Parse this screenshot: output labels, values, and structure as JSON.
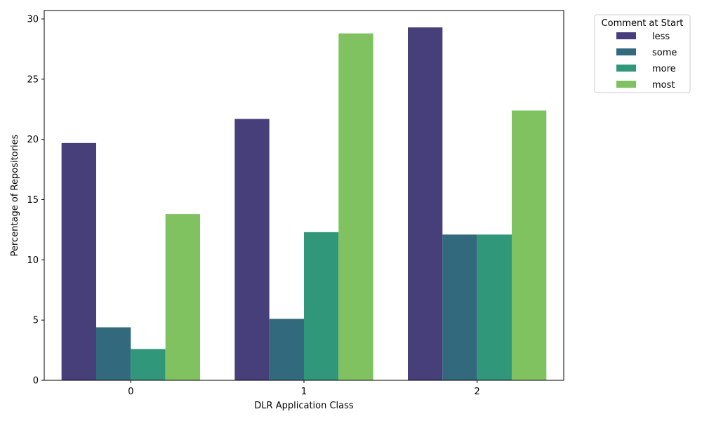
{
  "chart_data": {
    "type": "bar",
    "xlabel": "DLR Application Class",
    "ylabel": "Percentage of Repositories",
    "categories": [
      "0",
      "1",
      "2"
    ],
    "ylim": [
      0,
      30.7
    ],
    "yticks": [
      0,
      5,
      10,
      15,
      20,
      25,
      30
    ],
    "legend": {
      "title": "Comment at Start",
      "placement": "outside-top-right"
    },
    "grid": false,
    "series": [
      {
        "name": "less",
        "color": "#463f7a",
        "values": [
          19.7,
          21.7,
          29.3
        ]
      },
      {
        "name": "some",
        "color": "#33697d",
        "values": [
          4.4,
          5.1,
          12.1
        ]
      },
      {
        "name": "more",
        "color": "#31977a",
        "values": [
          2.6,
          12.3,
          12.1
        ]
      },
      {
        "name": "most",
        "color": "#81c260",
        "values": [
          13.8,
          28.8,
          22.4
        ]
      }
    ]
  }
}
